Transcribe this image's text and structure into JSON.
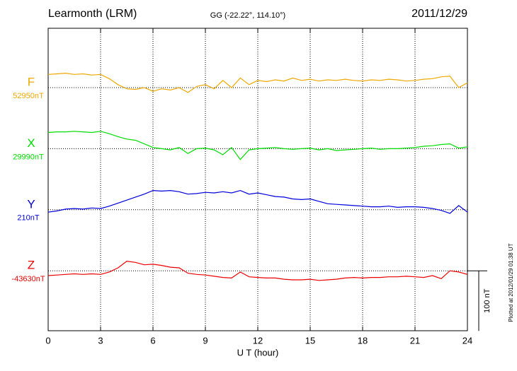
{
  "chart_data": {
    "type": "line",
    "title": "Learmonth (LRM)",
    "subtitle": "GG (-22.22°, 114.10°)",
    "date": "2011/12/29",
    "x_label": "U T (hour)",
    "footer": "Plotted at 2012/01/29 01:38 UT",
    "xlim": [
      0,
      24
    ],
    "xticks": [
      0,
      3,
      6,
      9,
      12,
      15,
      18,
      21,
      24
    ],
    "grid": true,
    "scale_bar": {
      "value": 100,
      "label": "100 nT"
    },
    "x": [
      0,
      0.5,
      1,
      1.5,
      2,
      2.5,
      3,
      3.5,
      4,
      4.5,
      5,
      5.5,
      6,
      6.5,
      7,
      7.5,
      8,
      8.5,
      9,
      9.5,
      10,
      10.5,
      11,
      11.5,
      12,
      12.5,
      13,
      13.5,
      14,
      14.5,
      15,
      15.5,
      16,
      16.5,
      17,
      17.5,
      18,
      18.5,
      19,
      19.5,
      20,
      20.5,
      21,
      21.5,
      22,
      22.5,
      23,
      23.5,
      24
    ],
    "series": [
      {
        "name": "F",
        "color": "#f0a800",
        "baseline": {
          "value": 52950,
          "label": "52950nT"
        },
        "values": [
          52972,
          52973,
          52974,
          52972,
          52973,
          52971,
          52972,
          52965,
          52955,
          52948,
          52947,
          52950,
          52944,
          52948,
          52946,
          52950,
          52942,
          52952,
          52955,
          52948,
          52962,
          52950,
          52966,
          52955,
          52962,
          52960,
          52963,
          52961,
          52966,
          52962,
          52964,
          52961,
          52963,
          52962,
          52964,
          52962,
          52961,
          52963,
          52962,
          52964,
          52963,
          52961,
          52962,
          52964,
          52965,
          52968,
          52969,
          52950,
          52958
        ]
      },
      {
        "name": "X",
        "color": "#00dd00",
        "baseline": {
          "value": 29990,
          "label": "29990nT"
        },
        "values": [
          30017,
          30018,
          30018,
          30019,
          30018,
          30017,
          30019,
          30015,
          30010,
          30006,
          30004,
          29998,
          29992,
          29990,
          29988,
          29992,
          29982,
          29990,
          29991,
          29988,
          29980,
          29992,
          29972,
          29988,
          29990,
          29991,
          29992,
          29990,
          29989,
          29990,
          29991,
          29988,
          29990,
          29987,
          29988,
          29989,
          29990,
          29991,
          29989,
          29990,
          29990,
          29991,
          29992,
          29994,
          29995,
          29997,
          29998,
          29991,
          29993
        ]
      },
      {
        "name": "Y",
        "color": "#0000dd",
        "baseline": {
          "value": 210,
          "label": "210nT"
        },
        "values": [
          206,
          208,
          211,
          212,
          211,
          213,
          212,
          216,
          221,
          226,
          231,
          236,
          242,
          241,
          242,
          240,
          236,
          237,
          239,
          238,
          240,
          238,
          242,
          236,
          238,
          235,
          232,
          231,
          228,
          227,
          228,
          224,
          220,
          219,
          218,
          217,
          216,
          215,
          215,
          216,
          214,
          215,
          215,
          214,
          212,
          209,
          204,
          217,
          206
        ]
      },
      {
        "name": "Z",
        "color": "#ee0000",
        "baseline": {
          "value": -43630,
          "label": "-43630nT"
        },
        "values": [
          -43638,
          -43637,
          -43636,
          -43635,
          -43636,
          -43635,
          -43636,
          -43632,
          -43625,
          -43614,
          -43616,
          -43620,
          -43619,
          -43621,
          -43624,
          -43625,
          -43634,
          -43636,
          -43637,
          -43639,
          -43641,
          -43642,
          -43632,
          -43640,
          -43641,
          -43642,
          -43642,
          -43644,
          -43645,
          -43645,
          -43644,
          -43646,
          -43645,
          -43644,
          -43642,
          -43641,
          -43642,
          -43641,
          -43641,
          -43640,
          -43640,
          -43639,
          -43640,
          -43641,
          -43638,
          -43643,
          -43630,
          -43632,
          -43636
        ]
      }
    ]
  }
}
